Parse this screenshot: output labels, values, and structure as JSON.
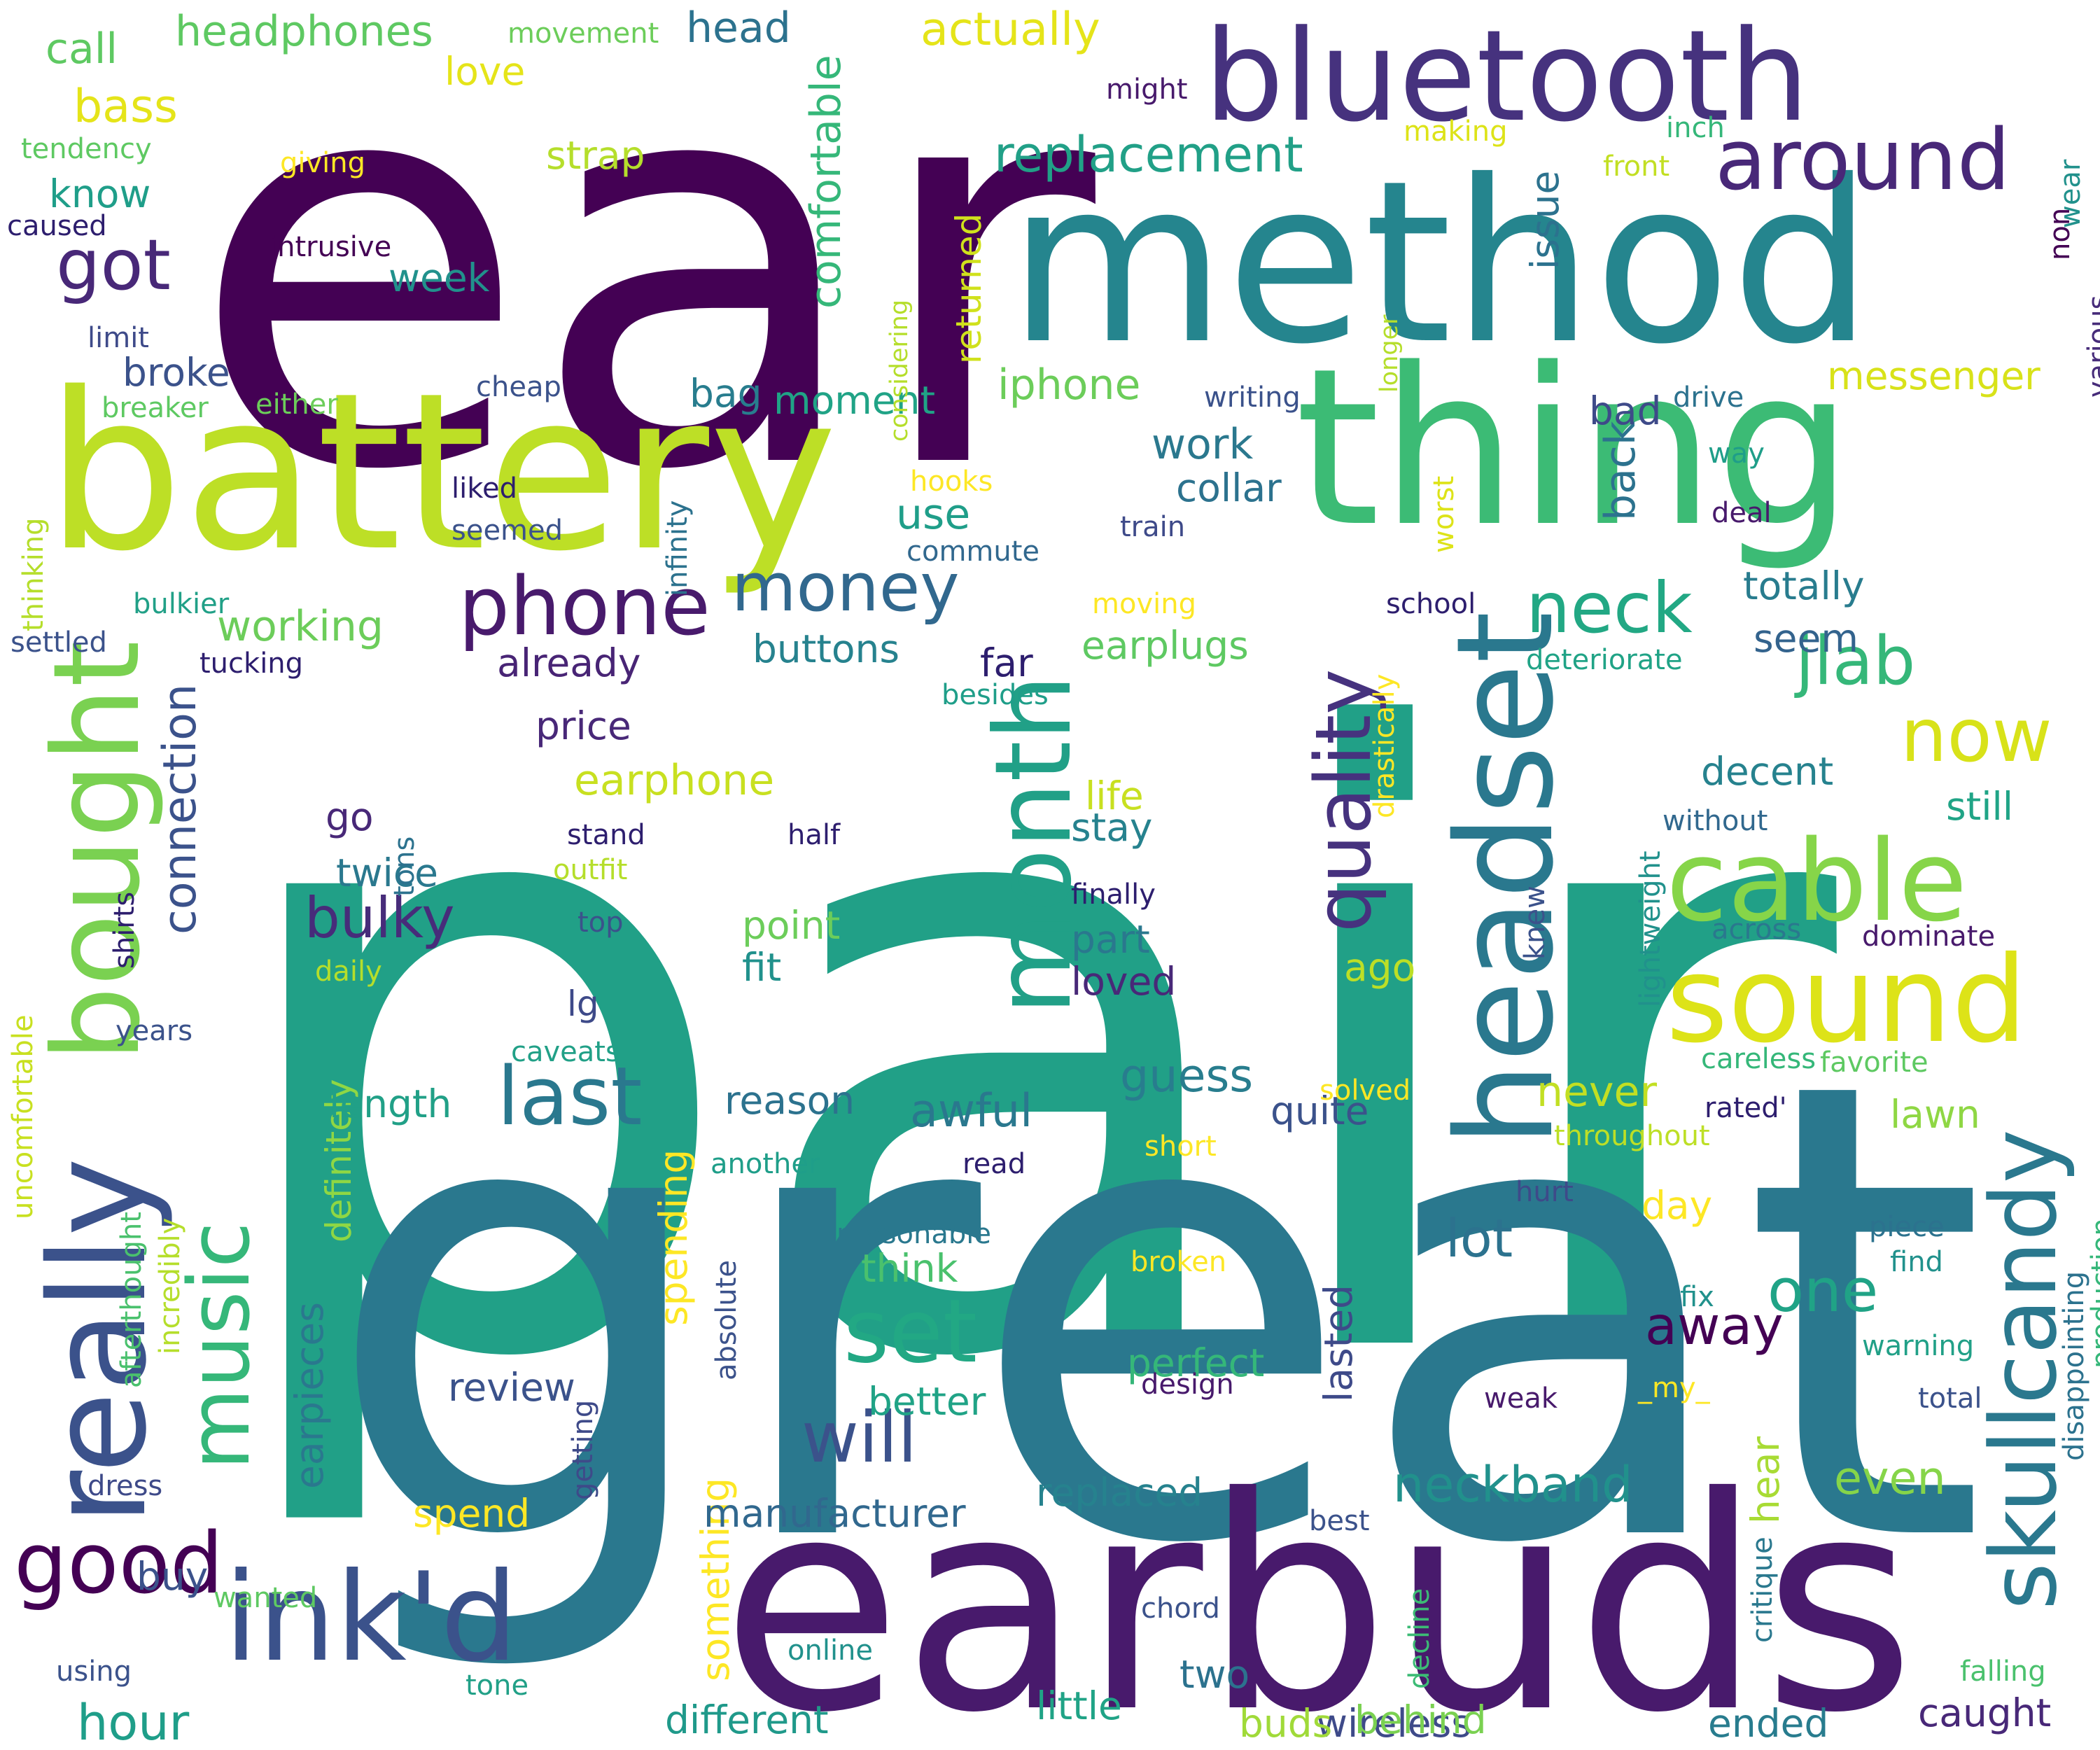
{
  "words": [
    {
      "text": "ear",
      "color": "#440154"
    },
    {
      "text": "pair",
      "color": "#21a087"
    },
    {
      "text": "great",
      "color": "#2a788e"
    },
    {
      "text": "earbuds",
      "color": "#481a6c"
    },
    {
      "text": "method",
      "color": "#25858e"
    },
    {
      "text": "battery",
      "color": "#bddf26"
    },
    {
      "text": "thing",
      "color": "#3cbb75"
    },
    {
      "text": "bluetooth",
      "color": "#46327e"
    },
    {
      "text": "headset",
      "color": "#2a788e"
    },
    {
      "text": "really",
      "color": "#3b528b"
    },
    {
      "text": "bought",
      "color": "#7ad151"
    },
    {
      "text": "ink'd",
      "color": "#3b528b"
    },
    {
      "text": "sound",
      "color": "#dde318"
    },
    {
      "text": "cable",
      "color": "#86d549"
    },
    {
      "text": "month",
      "color": "#21a087"
    },
    {
      "text": "skullcandy",
      "color": "#2a788e"
    },
    {
      "text": "quality",
      "color": "#46327e"
    },
    {
      "text": "phone",
      "color": "#481a6c"
    },
    {
      "text": "money",
      "color": "#31688e"
    },
    {
      "text": "music",
      "color": "#35b779"
    },
    {
      "text": "around",
      "color": "#482878"
    },
    {
      "text": "good",
      "color": "#440154"
    },
    {
      "text": "will",
      "color": "#3b528b"
    },
    {
      "text": "set",
      "color": "#22a884"
    },
    {
      "text": "last",
      "color": "#2a788e"
    },
    {
      "text": "got",
      "color": "#482878"
    },
    {
      "text": "neck",
      "color": "#22a884"
    },
    {
      "text": "jlab",
      "color": "#35b779"
    },
    {
      "text": "now",
      "color": "#d8e219"
    },
    {
      "text": "neckband",
      "color": "#21918c"
    },
    {
      "text": "replacement",
      "color": "#21a087"
    },
    {
      "text": "connection",
      "color": "#3b528b"
    },
    {
      "text": "comfortable",
      "color": "#35b779"
    },
    {
      "text": "hour",
      "color": "#1f9e89"
    },
    {
      "text": "one",
      "color": "#20a386"
    },
    {
      "text": "lot",
      "color": "#2c728e"
    },
    {
      "text": "away",
      "color": "#440154"
    },
    {
      "text": "bulky",
      "color": "#472c7a"
    },
    {
      "text": "headphones",
      "color": "#5ec962"
    },
    {
      "text": "bass",
      "color": "#e5e419"
    },
    {
      "text": "actually",
      "color": "#e5e419"
    },
    {
      "text": "head",
      "color": "#2c728e"
    },
    {
      "text": "call",
      "color": "#5ec962"
    },
    {
      "text": "earpieces",
      "color": "#2a788e"
    },
    {
      "text": "definitely",
      "color": "#8fd744"
    },
    {
      "text": "returned",
      "color": "#d0e11c"
    },
    {
      "text": "spending",
      "color": "#fde725"
    },
    {
      "text": "something",
      "color": "#fde725"
    },
    {
      "text": "lasted",
      "color": "#3e4a89"
    },
    {
      "text": "iphone",
      "color": "#6ccd5a"
    },
    {
      "text": "messenger",
      "color": "#d8e219"
    },
    {
      "text": "earphone",
      "color": "#c8e020"
    },
    {
      "text": "earplugs",
      "color": "#5ec962"
    },
    {
      "text": "working",
      "color": "#6ccd5a"
    },
    {
      "text": "already",
      "color": "#482475"
    },
    {
      "text": "buttons",
      "color": "#26828e"
    },
    {
      "text": "decent",
      "color": "#26828e"
    },
    {
      "text": "totally",
      "color": "#287c8e"
    },
    {
      "text": "awful",
      "color": "#2a788e"
    },
    {
      "text": "guess",
      "color": "#287d8e"
    },
    {
      "text": "never",
      "color": "#c2df23"
    },
    {
      "text": "even",
      "color": "#86d549"
    },
    {
      "text": "replaced",
      "color": "#26828e"
    },
    {
      "text": "manufacturer",
      "color": "#31688e"
    },
    {
      "text": "different",
      "color": "#1f998a"
    },
    {
      "text": "wireless",
      "color": "#3e4a89"
    },
    {
      "text": "ended",
      "color": "#287c8e"
    },
    {
      "text": "caught",
      "color": "#482878"
    },
    {
      "text": "little",
      "color": "#20a386"
    },
    {
      "text": "buds",
      "color": "#a0da39"
    },
    {
      "text": "behind",
      "color": "#7ad151"
    },
    {
      "text": "two",
      "color": "#2c728e"
    },
    {
      "text": "buy",
      "color": "#3b528b"
    },
    {
      "text": "review",
      "color": "#3b528b"
    },
    {
      "text": "spend",
      "color": "#fde725"
    },
    {
      "text": "better",
      "color": "#20a386"
    },
    {
      "text": "think",
      "color": "#4ac16d"
    },
    {
      "text": "perfect",
      "color": "#35b779"
    },
    {
      "text": "fit",
      "color": "#21918c"
    },
    {
      "text": "point",
      "color": "#6ccd5a"
    },
    {
      "text": "loved",
      "color": "#482878"
    },
    {
      "text": "part",
      "color": "#2a788e"
    },
    {
      "text": "stay",
      "color": "#26828e"
    },
    {
      "text": "life",
      "color": "#c8e020"
    },
    {
      "text": "still",
      "color": "#20a486"
    },
    {
      "text": "week",
      "color": "#21918c"
    },
    {
      "text": "strap",
      "color": "#b5de2b"
    },
    {
      "text": "know",
      "color": "#1f9e89"
    },
    {
      "text": "love",
      "color": "#e5e419"
    },
    {
      "text": "issue",
      "color": "#2c728e"
    },
    {
      "text": "use",
      "color": "#1f9e89"
    },
    {
      "text": "work",
      "color": "#2a788e"
    },
    {
      "text": "collar",
      "color": "#2c728e"
    },
    {
      "text": "bag",
      "color": "#287d8e"
    },
    {
      "text": "moment",
      "color": "#20a386"
    },
    {
      "text": "broke",
      "color": "#3b528b"
    },
    {
      "text": "price",
      "color": "#482878"
    },
    {
      "text": "far",
      "color": "#2d1e6e"
    },
    {
      "text": "back",
      "color": "#2c728e"
    },
    {
      "text": "bad",
      "color": "#3e4a89"
    },
    {
      "text": "seem",
      "color": "#33638d"
    },
    {
      "text": "twice",
      "color": "#2a788e"
    },
    {
      "text": "go",
      "color": "#482878"
    },
    {
      "text": "lg",
      "color": "#3e4a89"
    },
    {
      "text": "length",
      "color": "#21a087"
    },
    {
      "text": "reason",
      "color": "#2c728e"
    },
    {
      "text": "quite",
      "color": "#3b528b"
    },
    {
      "text": "ago",
      "color": "#bddf26"
    },
    {
      "text": "lawn",
      "color": "#8fd744"
    },
    {
      "text": "day",
      "color": "#fde725"
    },
    {
      "text": "hear",
      "color": "#a8db34"
    },
    {
      "text": "movement",
      "color": "#6ccd5a"
    },
    {
      "text": "might",
      "color": "#481a6c"
    },
    {
      "text": "giving",
      "color": "#fde725"
    },
    {
      "text": "tendency",
      "color": "#5ec962"
    },
    {
      "text": "caused",
      "color": "#2d1e6e"
    },
    {
      "text": "intrusive",
      "color": "#440154"
    },
    {
      "text": "limit",
      "color": "#3e4a89"
    },
    {
      "text": "cheap",
      "color": "#3b528b"
    },
    {
      "text": "breaker",
      "color": "#5ec962"
    },
    {
      "text": "either",
      "color": "#6ccd5a"
    },
    {
      "text": "writing",
      "color": "#3b528b"
    },
    {
      "text": "making",
      "color": "#dde318"
    },
    {
      "text": "inch",
      "color": "#35b779"
    },
    {
      "text": "front",
      "color": "#c2df23"
    },
    {
      "text": "wear",
      "color": "#21918c"
    },
    {
      "text": "non",
      "color": "#440154"
    },
    {
      "text": "various",
      "color": "#472c7a"
    },
    {
      "text": "longer",
      "color": "#b5de2b"
    },
    {
      "text": "considering",
      "color": "#b5de2b"
    },
    {
      "text": "drive",
      "color": "#2c728e"
    },
    {
      "text": "way",
      "color": "#1f9e89"
    },
    {
      "text": "deal",
      "color": "#481a6c"
    },
    {
      "text": "hooks",
      "color": "#fde725"
    },
    {
      "text": "train",
      "color": "#3e4a89"
    },
    {
      "text": "commute",
      "color": "#31688e"
    },
    {
      "text": "liked",
      "color": "#2d1e6e"
    },
    {
      "text": "seemed",
      "color": "#3b528b"
    },
    {
      "text": "infinity",
      "color": "#2c728e"
    },
    {
      "text": "worst",
      "color": "#dde318"
    },
    {
      "text": "school",
      "color": "#2d1e6e"
    },
    {
      "text": "moving",
      "color": "#fde725"
    },
    {
      "text": "deteriorate",
      "color": "#20a386"
    },
    {
      "text": "besides",
      "color": "#1f9e89"
    },
    {
      "text": "drastically",
      "color": "#fde725"
    },
    {
      "text": "without",
      "color": "#31688e"
    },
    {
      "text": "across",
      "color": "#2a788e"
    },
    {
      "text": "dominate",
      "color": "#481a6c"
    },
    {
      "text": "lightweight",
      "color": "#21918c"
    },
    {
      "text": "knew",
      "color": "#3b528b"
    },
    {
      "text": "careless",
      "color": "#35b779"
    },
    {
      "text": "favorite",
      "color": "#5ec962"
    },
    {
      "text": "rated'",
      "color": "#2d1e6e"
    },
    {
      "text": "throughout",
      "color": "#bddf26"
    },
    {
      "text": "solved",
      "color": "#fde725"
    },
    {
      "text": "hurt",
      "color": "#3e4a89"
    },
    {
      "text": "short",
      "color": "#fde725"
    },
    {
      "text": "read",
      "color": "#2d1e6e"
    },
    {
      "text": "reasonable",
      "color": "#2a788e"
    },
    {
      "text": "broken",
      "color": "#fde725"
    },
    {
      "text": "design",
      "color": "#481a6c"
    },
    {
      "text": "weak",
      "color": "#481a6c"
    },
    {
      "text": "_my_",
      "color": "#fde725"
    },
    {
      "text": "fix",
      "color": "#21918c"
    },
    {
      "text": "piece",
      "color": "#2c728e"
    },
    {
      "text": "find",
      "color": "#21918c"
    },
    {
      "text": "warning",
      "color": "#21a087"
    },
    {
      "text": "total",
      "color": "#3b528b"
    },
    {
      "text": "production",
      "color": "#35b779"
    },
    {
      "text": "disappointing",
      "color": "#2c728e"
    },
    {
      "text": "critique",
      "color": "#2a788e"
    },
    {
      "text": "decline",
      "color": "#3cbb75"
    },
    {
      "text": "best",
      "color": "#3b528b"
    },
    {
      "text": "chord",
      "color": "#3b528b"
    },
    {
      "text": "online",
      "color": "#21918c"
    },
    {
      "text": "falling",
      "color": "#4ac16d"
    },
    {
      "text": "tone",
      "color": "#21a087"
    },
    {
      "text": "using",
      "color": "#3b528b"
    },
    {
      "text": "wanted",
      "color": "#5ec962"
    },
    {
      "text": "dress",
      "color": "#3e4a89"
    },
    {
      "text": "afterthought",
      "color": "#4ac16d"
    },
    {
      "text": "incredibly",
      "color": "#b5de2b"
    },
    {
      "text": "years",
      "color": "#3b528b"
    },
    {
      "text": "daily",
      "color": "#b5de2b"
    },
    {
      "text": "uncomfortable",
      "color": "#c8e020"
    },
    {
      "text": "shirts",
      "color": "#2d1e6e"
    },
    {
      "text": "tons",
      "color": "#2c728e"
    },
    {
      "text": "stand",
      "color": "#2d1e6e"
    },
    {
      "text": "outfit",
      "color": "#b5de2b"
    },
    {
      "text": "top",
      "color": "#3b528b"
    },
    {
      "text": "caveats",
      "color": "#21a087"
    },
    {
      "text": "half",
      "color": "#2d1e6e"
    },
    {
      "text": "finally",
      "color": "#2d1e6e"
    },
    {
      "text": "another",
      "color": "#1f9e89"
    },
    {
      "text": "absolute",
      "color": "#3b528b"
    },
    {
      "text": "getting",
      "color": "#3e4a89"
    },
    {
      "text": "thinking",
      "color": "#b5de2b"
    },
    {
      "text": "settled",
      "color": "#3b528b"
    },
    {
      "text": "tucking",
      "color": "#2d1e6e"
    },
    {
      "text": "bulkier",
      "color": "#21a087"
    }
  ]
}
